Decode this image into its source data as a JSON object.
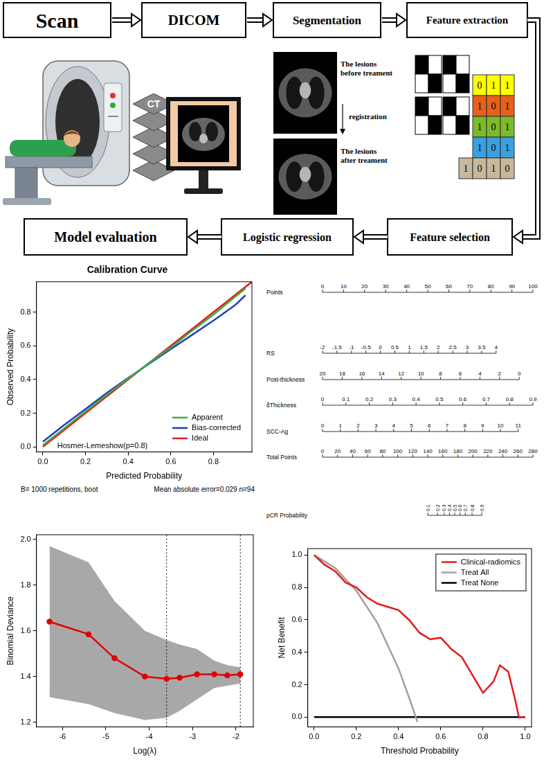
{
  "flowchart": {
    "steps": [
      "Scan",
      "DICOM",
      "Segmentation",
      "Feature extraction",
      "Feature selection",
      "Logistic regression",
      "Model evaluation"
    ],
    "ct_label": "CT",
    "segmentation_notes": {
      "before": "The lesions before treament",
      "between": "registration",
      "after": "The lesions after treament"
    },
    "feature_matrix": [
      [
        0,
        1,
        1
      ],
      [
        1,
        0,
        1
      ],
      [
        1,
        0,
        1
      ],
      [
        1,
        0,
        1
      ],
      [
        1,
        0,
        1,
        0
      ]
    ]
  },
  "chart_data": [
    {
      "type": "line",
      "title": "Calibration Curve",
      "x_label": "Predicted Probability",
      "y_label": "Observed Probability",
      "xlim": [
        -0.03,
        0.98
      ],
      "ylim": [
        -0.03,
        0.98
      ],
      "xticks": [
        {
          "value": 0,
          "label": "0.0"
        },
        0.2,
        0.4,
        0.6,
        0.8
      ],
      "yticks": [
        {
          "value": 0,
          "label": "0.0"
        },
        0.2,
        0.4,
        0.6,
        0.8
      ],
      "grid": false,
      "legend": "lower right",
      "series": [
        {
          "name": "Apparent",
          "color": "#3cb043",
          "x": [
            0,
            0.1,
            0.2,
            0.3,
            0.4,
            0.5,
            0.6,
            0.7,
            0.8,
            0.9,
            0.95
          ],
          "values": [
            0.01,
            0.11,
            0.21,
            0.31,
            0.405,
            0.5,
            0.59,
            0.69,
            0.785,
            0.89,
            0.94
          ]
        },
        {
          "name": "Bias-corrected",
          "color": "#1f3fbf",
          "x": [
            0,
            0.1,
            0.2,
            0.3,
            0.4,
            0.5,
            0.6,
            0.7,
            0.8,
            0.9,
            0.95
          ],
          "values": [
            0.03,
            0.13,
            0.225,
            0.32,
            0.41,
            0.495,
            0.58,
            0.665,
            0.75,
            0.84,
            0.9
          ]
        },
        {
          "name": "Ideal",
          "color": "#e41a1c",
          "x": [
            0,
            0.98
          ],
          "values": [
            0,
            0.98
          ]
        }
      ],
      "annotations": [
        "Hosmer-Lemeshow(p=0.8)"
      ],
      "footnotes": [
        "B= 1000 repetitions, boot",
        "Mean absolute error=0.029 n=94"
      ]
    },
    {
      "type": "nomogram",
      "axes": [
        {
          "label": "Points",
          "ticks": [
            0,
            10,
            20,
            30,
            40,
            50,
            60,
            70,
            80,
            90,
            100
          ],
          "span": [
            0,
            100
          ]
        },
        {
          "label": "RS",
          "ticks": [
            -2,
            -1.5,
            -1,
            -0.5,
            0,
            0.5,
            1,
            1.5,
            2,
            2.5,
            3,
            3.5,
            4
          ],
          "span": [
            0,
            82.5
          ]
        },
        {
          "label": "Post-thickness",
          "ticks": [
            20,
            18,
            16,
            14,
            12,
            10,
            8,
            6,
            4,
            2,
            0
          ],
          "span": [
            0,
            93.5
          ]
        },
        {
          "label": "δThickness",
          "ticks": [
            0,
            0.1,
            0.2,
            0.3,
            0.4,
            0.5,
            0.6,
            0.7,
            0.8,
            0.9
          ],
          "span": [
            0,
            100
          ]
        },
        {
          "label": "SCC-Ag",
          "ticks": [
            0,
            1,
            2,
            3,
            4,
            5,
            6,
            7,
            8,
            9,
            10,
            11
          ],
          "span": [
            0,
            93
          ]
        },
        {
          "label": "Total Points",
          "ticks": [
            0,
            20,
            40,
            60,
            80,
            100,
            120,
            140,
            160,
            180,
            200,
            220,
            240,
            260,
            280
          ],
          "span": [
            0,
            100
          ]
        },
        {
          "label": "pCR Probability",
          "ticks": [
            0.1,
            0.2,
            0.3,
            0.4,
            0.5,
            0.6,
            0.7,
            0.8,
            0.9
          ],
          "total_points": [
            140,
            153,
            162,
            169,
            176,
            183,
            190,
            199,
            212
          ]
        }
      ]
    },
    {
      "type": "line",
      "x_label": "Log(λ)",
      "y_label": "Binomial Deviance",
      "xlim": [
        -6.6,
        -1.6
      ],
      "ylim": [
        1.18,
        2.02
      ],
      "xticks": [
        -6,
        -5,
        -4,
        -3,
        -2
      ],
      "yticks": [
        1.2,
        1.4,
        1.6,
        1.8,
        {
          "value": 2,
          "label": "2.0"
        }
      ],
      "grid": false,
      "x": [
        -6.3,
        -5.4,
        -4.8,
        -4.1,
        -3.6,
        -3.3,
        -2.9,
        -2.5,
        -2.2,
        -1.9
      ],
      "series": [
        {
          "color": "#e00000",
          "marker": "circle",
          "values": [
            1.64,
            1.585,
            1.48,
            1.4,
            1.39,
            1.395,
            1.41,
            1.41,
            1.405,
            1.41
          ]
        }
      ],
      "band": {
        "color": "#a8a8a8",
        "lower": [
          1.31,
          1.28,
          1.24,
          1.21,
          1.22,
          1.25,
          1.3,
          1.35,
          1.36,
          1.37
        ],
        "upper": [
          1.97,
          1.9,
          1.73,
          1.6,
          1.56,
          1.54,
          1.52,
          1.47,
          1.45,
          1.44
        ]
      },
      "vlines": [
        -3.6,
        -1.9
      ]
    },
    {
      "type": "line",
      "x_label": "Threshold Probability",
      "y_label": "Net Benefit",
      "xlim": [
        -0.03,
        1.03
      ],
      "ylim": [
        -0.06,
        1.04
      ],
      "xticks": [
        {
          "value": 0,
          "label": "0.0"
        },
        0.2,
        0.4,
        0.6,
        0.8,
        {
          "value": 1,
          "label": "1.0"
        }
      ],
      "yticks": [
        {
          "value": 0,
          "label": "0.0"
        },
        0.2,
        0.4,
        0.6,
        0.8,
        {
          "value": 1,
          "label": "1.0"
        }
      ],
      "grid": false,
      "legend": "upper right",
      "series": [
        {
          "name": "Clinical-radiomics",
          "color": "#e41a1c",
          "x": [
            0,
            0.05,
            0.1,
            0.15,
            0.2,
            0.25,
            0.3,
            0.35,
            0.4,
            0.45,
            0.5,
            0.55,
            0.6,
            0.65,
            0.7,
            0.75,
            0.8,
            0.85,
            0.88,
            0.92,
            0.95,
            0.97,
            1.0
          ],
          "values": [
            1.0,
            0.94,
            0.9,
            0.83,
            0.8,
            0.74,
            0.7,
            0.68,
            0.66,
            0.6,
            0.52,
            0.48,
            0.49,
            0.42,
            0.37,
            0.26,
            0.15,
            0.22,
            0.32,
            0.28,
            0.12,
            0,
            0
          ]
        },
        {
          "name": "Treat All",
          "color": "#a0a0a0",
          "x": [
            0,
            0.1,
            0.2,
            0.3,
            0.4,
            0.45,
            0.49
          ],
          "values": [
            1.0,
            0.92,
            0.78,
            0.58,
            0.3,
            0.12,
            -0.03
          ]
        },
        {
          "name": "Treat None",
          "color": "#000000",
          "x": [
            0,
            1
          ],
          "values": [
            0,
            0
          ]
        }
      ]
    }
  ]
}
